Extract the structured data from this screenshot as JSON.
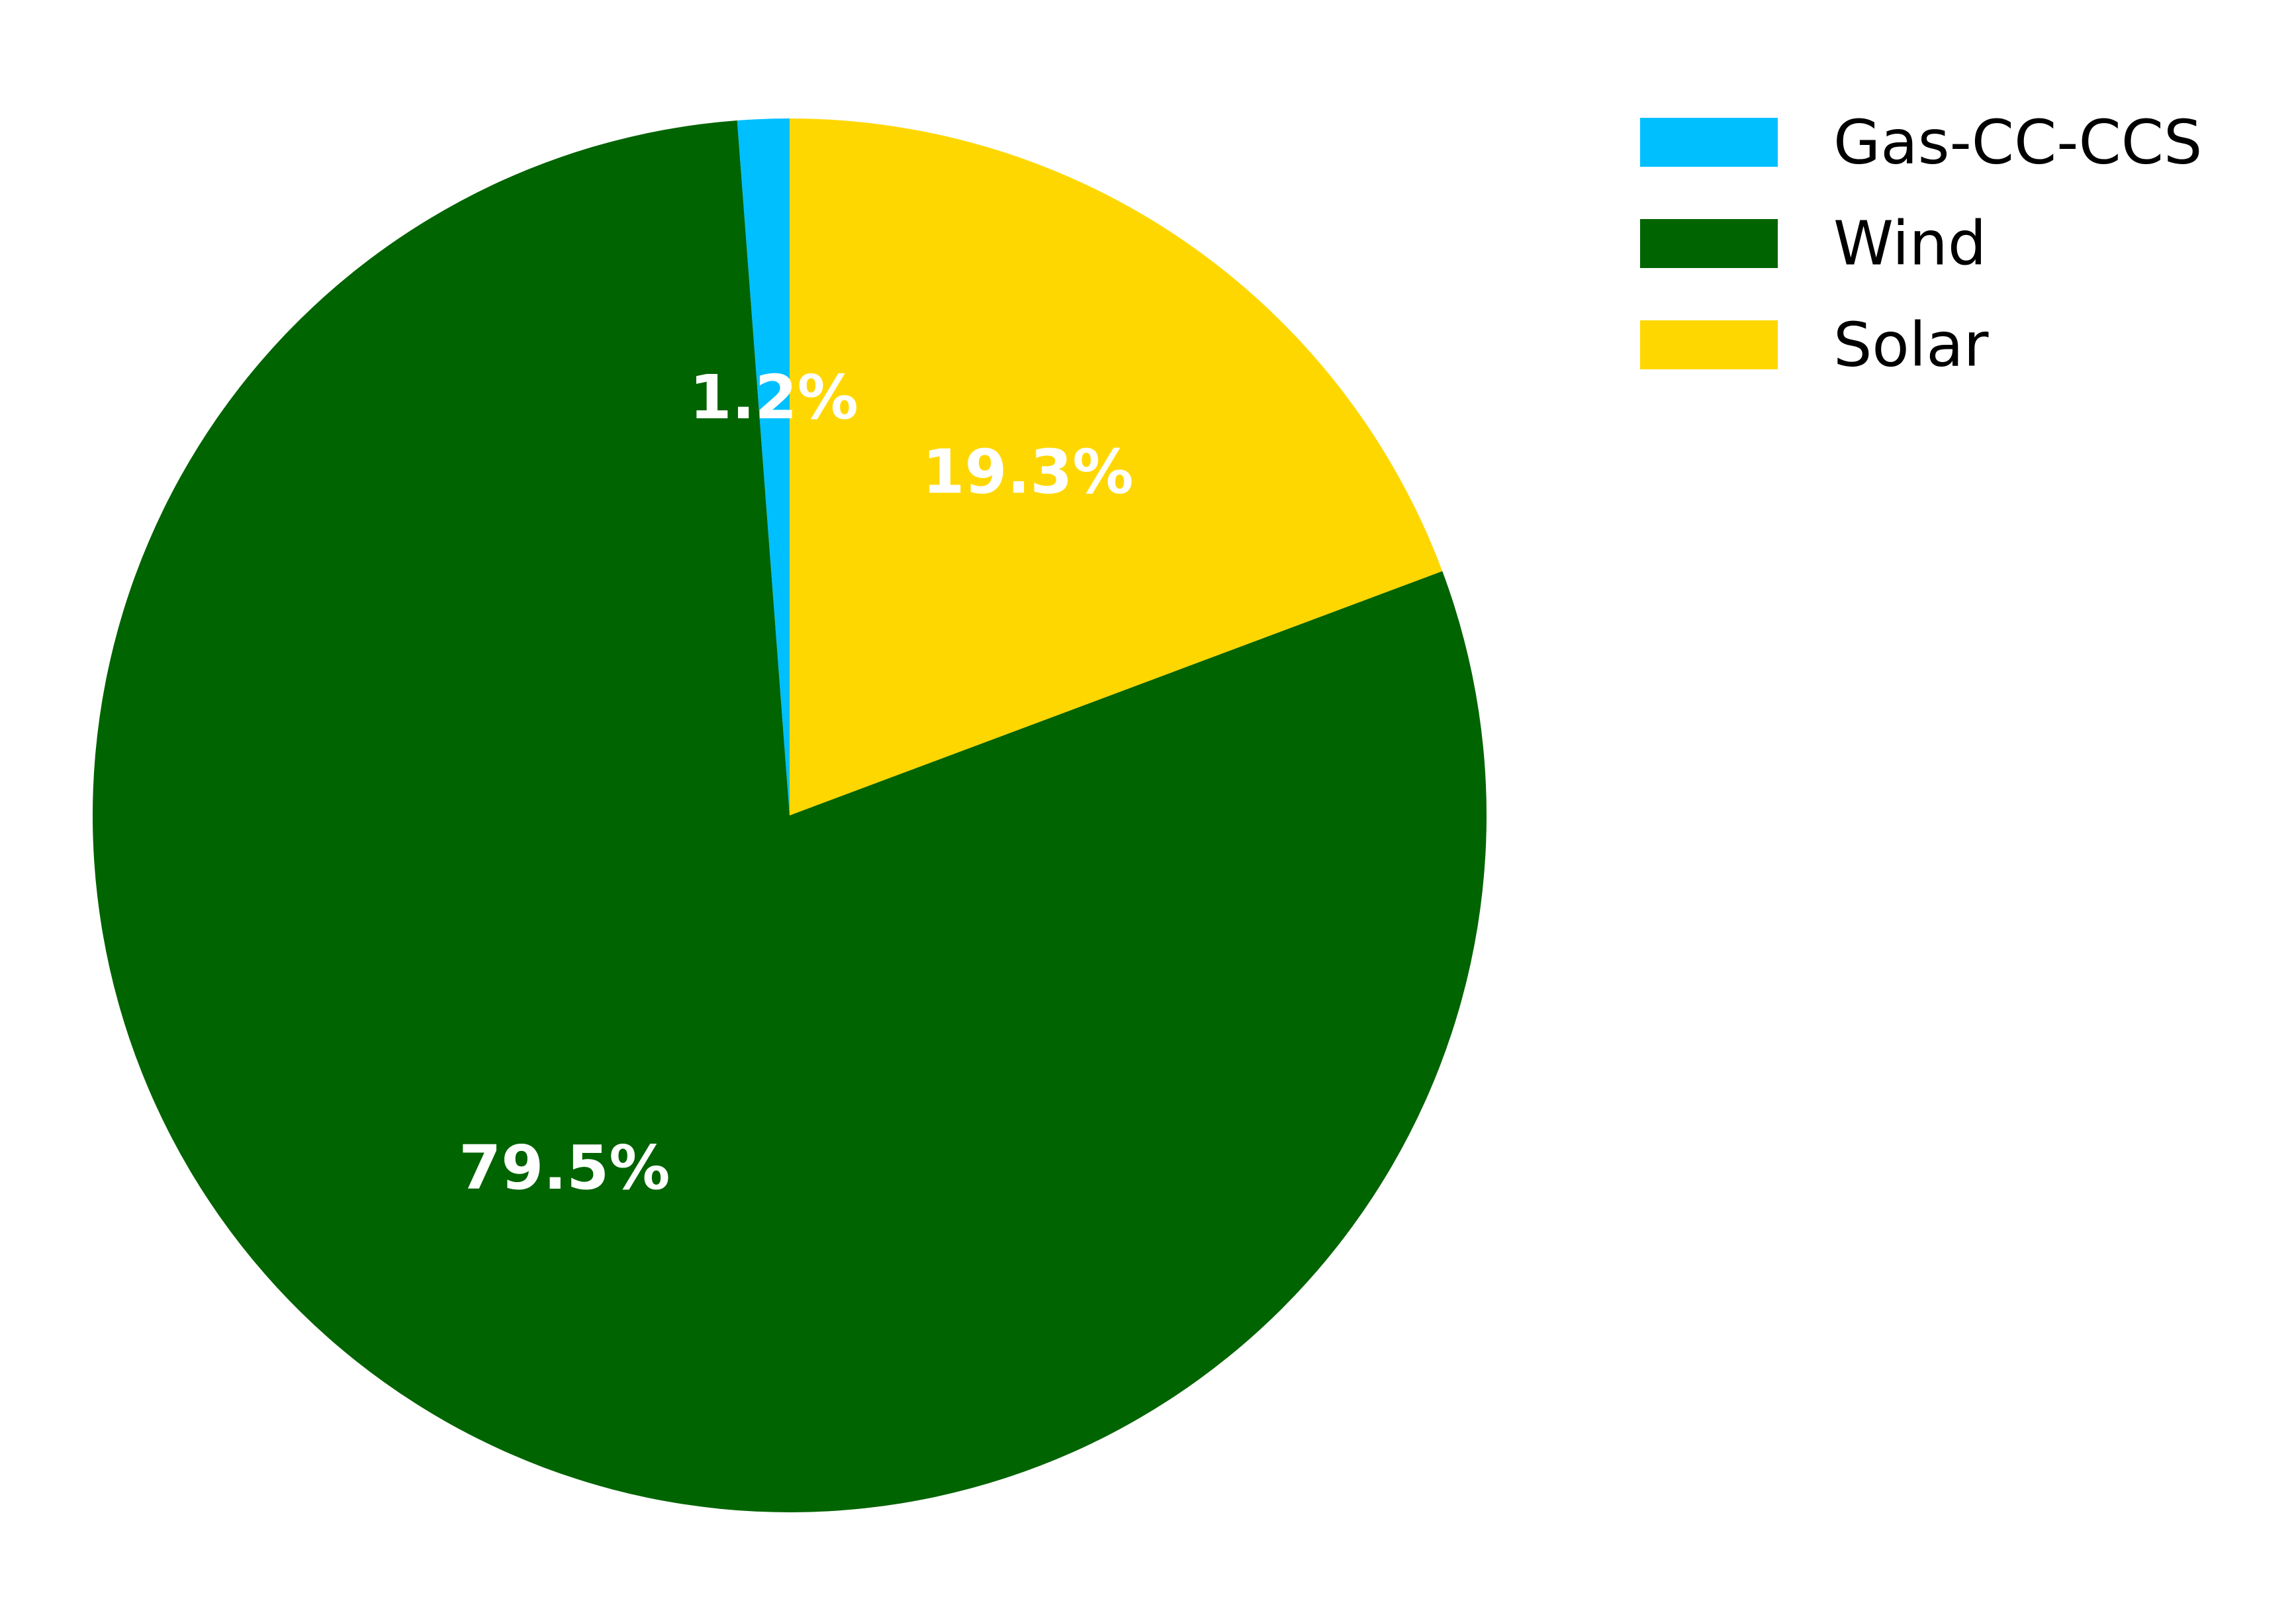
{
  "chart_data": {
    "type": "pie",
    "categories": [
      "Gas-CC-CCS",
      "Wind",
      "Solar"
    ],
    "values": [
      1.2,
      79.5,
      19.3
    ],
    "labels": [
      "1.2%",
      "79.5%",
      "19.3%"
    ],
    "colors": [
      "#00BFFF",
      "#006400",
      "#FFD700"
    ],
    "start_angle_deg": 90,
    "direction": "counterclockwise",
    "legend": {
      "position": "top-right",
      "entries": [
        "Gas-CC-CCS",
        "Wind",
        "Solar"
      ]
    }
  }
}
